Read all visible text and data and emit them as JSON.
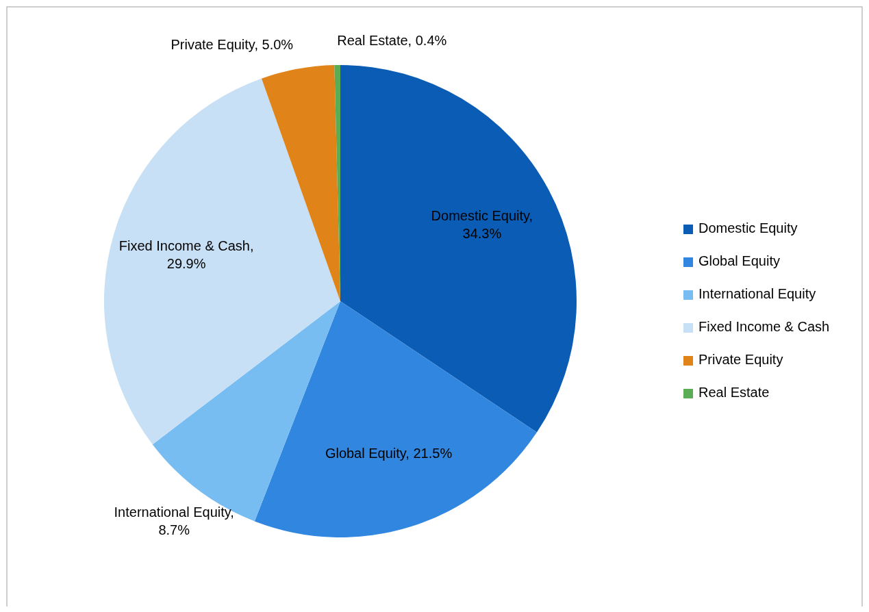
{
  "chart_data": {
    "type": "pie",
    "categories": [
      "Domestic Equity",
      "Global Equity",
      "International Equity",
      "Fixed Income & Cash",
      "Private Equity",
      "Real Estate"
    ],
    "values": [
      34.3,
      21.5,
      8.7,
      29.9,
      5.0,
      0.4
    ],
    "value_labels": [
      "Domestic Equity, 34.3%",
      "Global Equity, 21.5%",
      "International Equity, 8.7%",
      "Fixed Income & Cash, 29.9%",
      "Private Equity, 5.0%",
      "Real Estate, 0.4%"
    ],
    "colors": [
      "#0a5cb4",
      "#3186e0",
      "#78bdf2",
      "#c7e0f5",
      "#e0841a",
      "#5aad55"
    ],
    "legend": "right"
  }
}
